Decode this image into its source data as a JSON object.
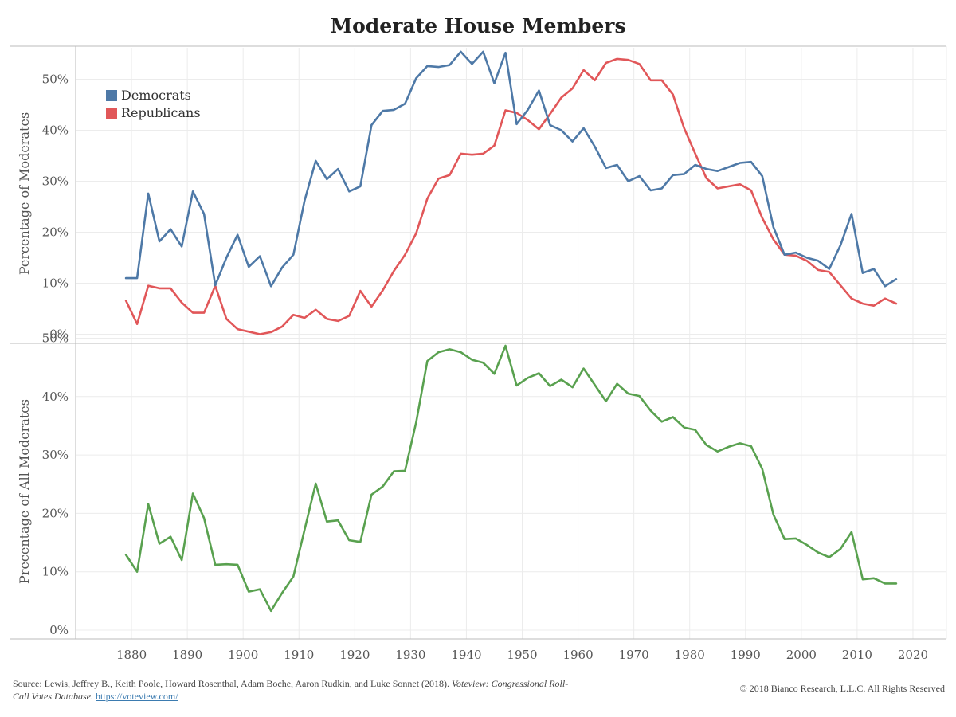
{
  "title": "Moderate House Members",
  "footer": {
    "source_prefix": "Source: Lewis, Jeffrey B., Keith Poole, Howard Rosenthal, Adam Boche, Aaron Rudkin, and Luke Sonnet (2018). ",
    "source_title": "Voteview: Congressional Roll-Call Votes Database.",
    "source_link": "https://voteview.com/",
    "copyright": "© 2018 Bianco Research, L.L.C. All Rights Reserved"
  },
  "colors": {
    "democrats": "#4e79a7",
    "republicans": "#e15759",
    "all": "#59a14f",
    "grid": "#ececec",
    "axis": "#bbbbbb"
  },
  "chart_data": [
    {
      "type": "line",
      "ylabel": "Percentage of Moderates",
      "ylim": [
        0,
        58
      ],
      "yticks": [
        "0%",
        "10%",
        "20%",
        "30%",
        "40%",
        "50%"
      ],
      "legend_position": "top-left",
      "x": [
        1879,
        1881,
        1883,
        1885,
        1887,
        1889,
        1891,
        1893,
        1895,
        1897,
        1899,
        1901,
        1903,
        1905,
        1907,
        1909,
        1911,
        1913,
        1915,
        1917,
        1919,
        1921,
        1923,
        1925,
        1927,
        1929,
        1931,
        1933,
        1935,
        1937,
        1939,
        1941,
        1943,
        1945,
        1947,
        1949,
        1951,
        1953,
        1955,
        1957,
        1959,
        1961,
        1963,
        1965,
        1967,
        1969,
        1971,
        1973,
        1975,
        1977,
        1979,
        1981,
        1983,
        1985,
        1987,
        1989,
        1991,
        1993,
        1995,
        1997,
        1999,
        2001,
        2003,
        2005,
        2007,
        2009,
        2011,
        2013,
        2015,
        2017
      ],
      "series": [
        {
          "name": "Democrats",
          "values": [
            11,
            11,
            27.6,
            18.2,
            20.6,
            17.2,
            28,
            23.6,
            9.6,
            15,
            19.5,
            13.2,
            15.3,
            9.4,
            13.1,
            15.6,
            26.2,
            34,
            30.4,
            32.4,
            28,
            29,
            41,
            43.8,
            44,
            45.2,
            50.2,
            52.6,
            52.4,
            52.8,
            55.4,
            53,
            55.4,
            49.2,
            55.2,
            41.2,
            44,
            47.8,
            41,
            40,
            37.8,
            40.4,
            36.8,
            32.6,
            33.2,
            30,
            31,
            28.2,
            28.6,
            31.2,
            31.4,
            33.2,
            32.4,
            32,
            32.8,
            33.6,
            33.8,
            31,
            21,
            15.6,
            16,
            15,
            14.4,
            12.8,
            17.4,
            23.6,
            12,
            12.8,
            9.4,
            10.8
          ]
        },
        {
          "name": "Republicans",
          "values": [
            6.6,
            2,
            9.5,
            9,
            9,
            6.2,
            4.2,
            4.2,
            9.5,
            3,
            1,
            0.5,
            0,
            0.4,
            1.5,
            3.8,
            3.2,
            4.8,
            3,
            2.6,
            3.6,
            8.5,
            5.4,
            8.6,
            12.4,
            15.6,
            19.8,
            26.6,
            30.5,
            31.2,
            35.4,
            35.2,
            35.4,
            37,
            43.9,
            43.4,
            42,
            40.2,
            43.2,
            46.4,
            48.2,
            51.8,
            49.8,
            53.2,
            54,
            53.8,
            53,
            49.8,
            49.8,
            47,
            40.4,
            35.4,
            30.6,
            28.6,
            29,
            29.4,
            28.2,
            22.8,
            18.6,
            15.6,
            15.4,
            14.4,
            12.6,
            12.2,
            9.6,
            7,
            6,
            5.6,
            7,
            6
          ]
        }
      ]
    },
    {
      "type": "line",
      "ylabel": "Precentage of All Moderates",
      "ylim": [
        0,
        48.5
      ],
      "yticks": [
        "0%",
        "10%",
        "20%",
        "30%",
        "40%",
        "50%"
      ],
      "xticks": [
        "1880",
        "1890",
        "1900",
        "1910",
        "1920",
        "1930",
        "1940",
        "1950",
        "1960",
        "1970",
        "1980",
        "1990",
        "2000",
        "2010",
        "2020"
      ],
      "x": [
        1879,
        1881,
        1883,
        1885,
        1887,
        1889,
        1891,
        1893,
        1895,
        1897,
        1899,
        1901,
        1903,
        1905,
        1907,
        1909,
        1911,
        1913,
        1915,
        1917,
        1919,
        1921,
        1923,
        1925,
        1927,
        1929,
        1931,
        1933,
        1935,
        1937,
        1939,
        1941,
        1943,
        1945,
        1947,
        1949,
        1951,
        1953,
        1955,
        1957,
        1959,
        1961,
        1963,
        1965,
        1967,
        1969,
        1971,
        1973,
        1975,
        1977,
        1979,
        1981,
        1983,
        1985,
        1987,
        1989,
        1991,
        1993,
        1995,
        1997,
        1999,
        2001,
        2003,
        2005,
        2007,
        2009,
        2011,
        2013,
        2015,
        2017
      ],
      "series": [
        {
          "name": "",
          "values": [
            12.9,
            10,
            21.6,
            14.8,
            16,
            12,
            23.4,
            19.2,
            11.2,
            11.3,
            11.2,
            6.6,
            7,
            3.3,
            6.4,
            9.2,
            17.2,
            25.1,
            18.6,
            18.8,
            15.4,
            15.1,
            23.2,
            24.6,
            27.2,
            27.3,
            35.6,
            46.1,
            47.6,
            48.1,
            47.6,
            46.3,
            45.8,
            43.9,
            48.7,
            41.9,
            43.2,
            44,
            41.8,
            42.9,
            41.6,
            44.8,
            42,
            39.2,
            42.2,
            40.5,
            40.1,
            37.6,
            35.7,
            36.5,
            34.7,
            34.3,
            31.7,
            30.6,
            31.4,
            32,
            31.5,
            27.6,
            19.8,
            15.6,
            15.7,
            14.6,
            13.3,
            12.5,
            13.9,
            16.8,
            8.7,
            8.9,
            8,
            8
          ]
        }
      ]
    }
  ]
}
